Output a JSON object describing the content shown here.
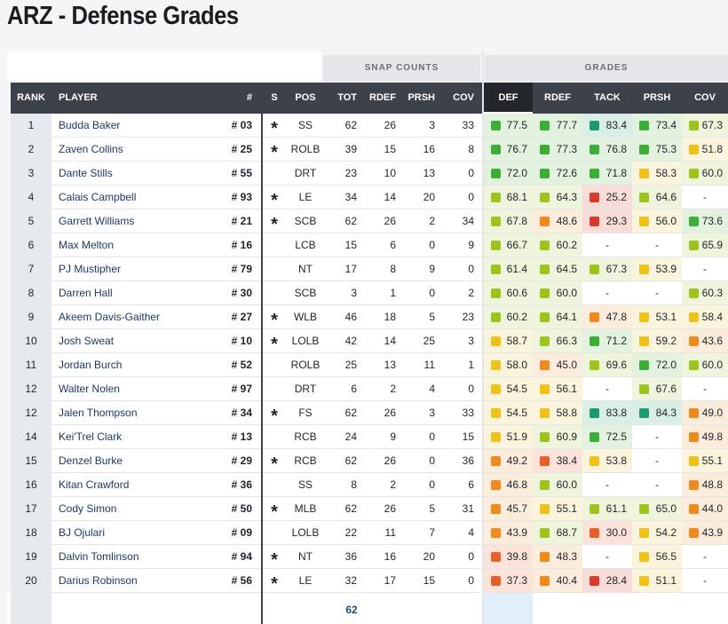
{
  "header": {
    "title": "ARZ - Defense Grades"
  },
  "table": {
    "group_headers": [
      "SNAP COUNTS",
      "GRADES"
    ],
    "columns": [
      "RANK",
      "PLAYER",
      "#",
      "S",
      "POS",
      "TOT",
      "RDEF",
      "PRSH",
      "COV",
      "DEF",
      "RDEF",
      "TACK",
      "PRSH",
      "COV"
    ],
    "rows": [
      [
        1,
        "Budda Baker",
        "# 03",
        "*",
        "SS",
        62,
        26,
        3,
        33,
        "77.5",
        "77.7",
        "83.4",
        "73.4",
        "67.3"
      ],
      [
        2,
        "Zaven Collins",
        "# 25",
        "*",
        "ROLB",
        39,
        15,
        16,
        8,
        "76.7",
        "77.3",
        "76.8",
        "75.3",
        "51.8"
      ],
      [
        3,
        "Dante Stills",
        "# 55",
        null,
        "DRT",
        23,
        10,
        13,
        0,
        "72.0",
        "72.6",
        "71.8",
        "58.3",
        "60.0"
      ],
      [
        4,
        "Calais Campbell",
        "# 93",
        "*",
        "LE",
        34,
        14,
        20,
        0,
        "68.1",
        "64.3",
        "25.2",
        "64.6",
        "-"
      ],
      [
        5,
        "Garrett Williams",
        "# 21",
        "*",
        "SCB",
        62,
        26,
        2,
        34,
        "67.8",
        "48.6",
        "29.3",
        "56.0",
        "73.6"
      ],
      [
        6,
        "Max Melton",
        "# 16",
        null,
        "LCB",
        15,
        6,
        0,
        9,
        "66.7",
        "60.2",
        "-",
        "-",
        "65.9"
      ],
      [
        7,
        "PJ Mustipher",
        "# 79",
        null,
        "NT",
        17,
        8,
        9,
        0,
        "61.4",
        "64.5",
        "67.3",
        "53.9",
        "-"
      ],
      [
        8,
        "Darren Hall",
        "# 30",
        null,
        "SCB",
        3,
        1,
        0,
        2,
        "60.6",
        "60.0",
        "-",
        "-",
        "60.3"
      ],
      [
        9,
        "Akeem Davis-Gaither",
        "# 27",
        "*",
        "WLB",
        46,
        18,
        5,
        23,
        "60.2",
        "64.1",
        "47.8",
        "53.1",
        "58.4"
      ],
      [
        10,
        "Josh Sweat",
        "# 10",
        "*",
        "LOLB",
        42,
        14,
        25,
        3,
        "58.7",
        "66.3",
        "71.2",
        "59.2",
        "43.6"
      ],
      [
        11,
        "Jordan Burch",
        "# 52",
        null,
        "ROLB",
        25,
        13,
        11,
        1,
        "58.0",
        "45.0",
        "69.6",
        "72.0",
        "60.0"
      ],
      [
        12,
        "Walter Nolen",
        "# 97",
        null,
        "DRT",
        6,
        2,
        4,
        0,
        "54.5",
        "56.1",
        "-",
        "67.6",
        "-"
      ],
      [
        12,
        "Jalen Thompson",
        "# 34",
        "*",
        "FS",
        62,
        26,
        3,
        33,
        "54.5",
        "58.8",
        "83.8",
        "84.3",
        "49.0"
      ],
      [
        14,
        "Kei'Trel Clark",
        "# 13",
        null,
        "RCB",
        24,
        9,
        0,
        15,
        "51.9",
        "60.9",
        "72.5",
        "-",
        "49.8"
      ],
      [
        15,
        "Denzel Burke",
        "# 29",
        "*",
        "RCB",
        62,
        26,
        0,
        36,
        "49.2",
        "38.4",
        "53.8",
        "-",
        "55.1"
      ],
      [
        16,
        "Kitan Crawford",
        "# 36",
        null,
        "SS",
        8,
        2,
        0,
        6,
        "46.8",
        "60.0",
        "-",
        "-",
        "48.8"
      ],
      [
        17,
        "Cody Simon",
        "# 50",
        "*",
        "MLB",
        62,
        26,
        5,
        31,
        "45.7",
        "55.1",
        "61.1",
        "65.0",
        "44.0"
      ],
      [
        18,
        "BJ Ojulari",
        "# 09",
        null,
        "LOLB",
        22,
        11,
        7,
        4,
        "43.9",
        "68.7",
        "30.0",
        "54.2",
        "43.9"
      ],
      [
        19,
        "Dalvin Tomlinson",
        "# 94",
        "*",
        "NT",
        36,
        16,
        20,
        0,
        "39.8",
        "48.3",
        "-",
        "56.5",
        "-"
      ],
      [
        20,
        "Darius Robinson",
        "# 56",
        "*",
        "LE",
        32,
        17,
        15,
        0,
        "37.3",
        "40.4",
        "28.4",
        "51.1",
        "-"
      ]
    ],
    "footer": {
      "TOT": 62
    }
  }
}
